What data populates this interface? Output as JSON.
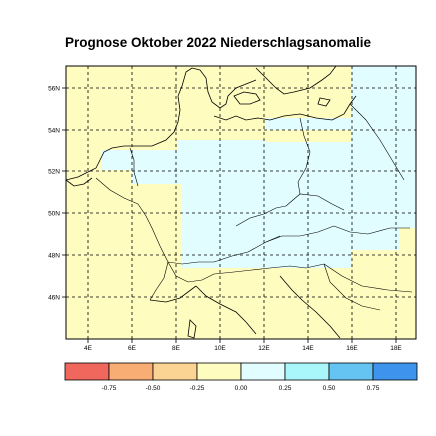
{
  "title": "Prognose Oktober 2022 Niederschlagsanomalie",
  "lat_labels": [
    "56N",
    "54N",
    "52N",
    "50N",
    "48N",
    "46N"
  ],
  "lon_labels": [
    "4E",
    "6E",
    "8E",
    "10E",
    "12E",
    "14E",
    "16E",
    "18E"
  ],
  "colorbar": {
    "ticks": [
      "-0.75",
      "-0.50",
      "-0.25",
      "0.00",
      "0.25",
      "0.50",
      "0.75"
    ],
    "colors": [
      "#f0675d",
      "#f7ad73",
      "#fbd392",
      "#fffcc0",
      "#e1fdff",
      "#a9f6fb",
      "#66c4f2",
      "#3e93ec"
    ]
  },
  "map_colors": {
    "low": "#fffcc0",
    "high": "#e1fdff"
  }
}
